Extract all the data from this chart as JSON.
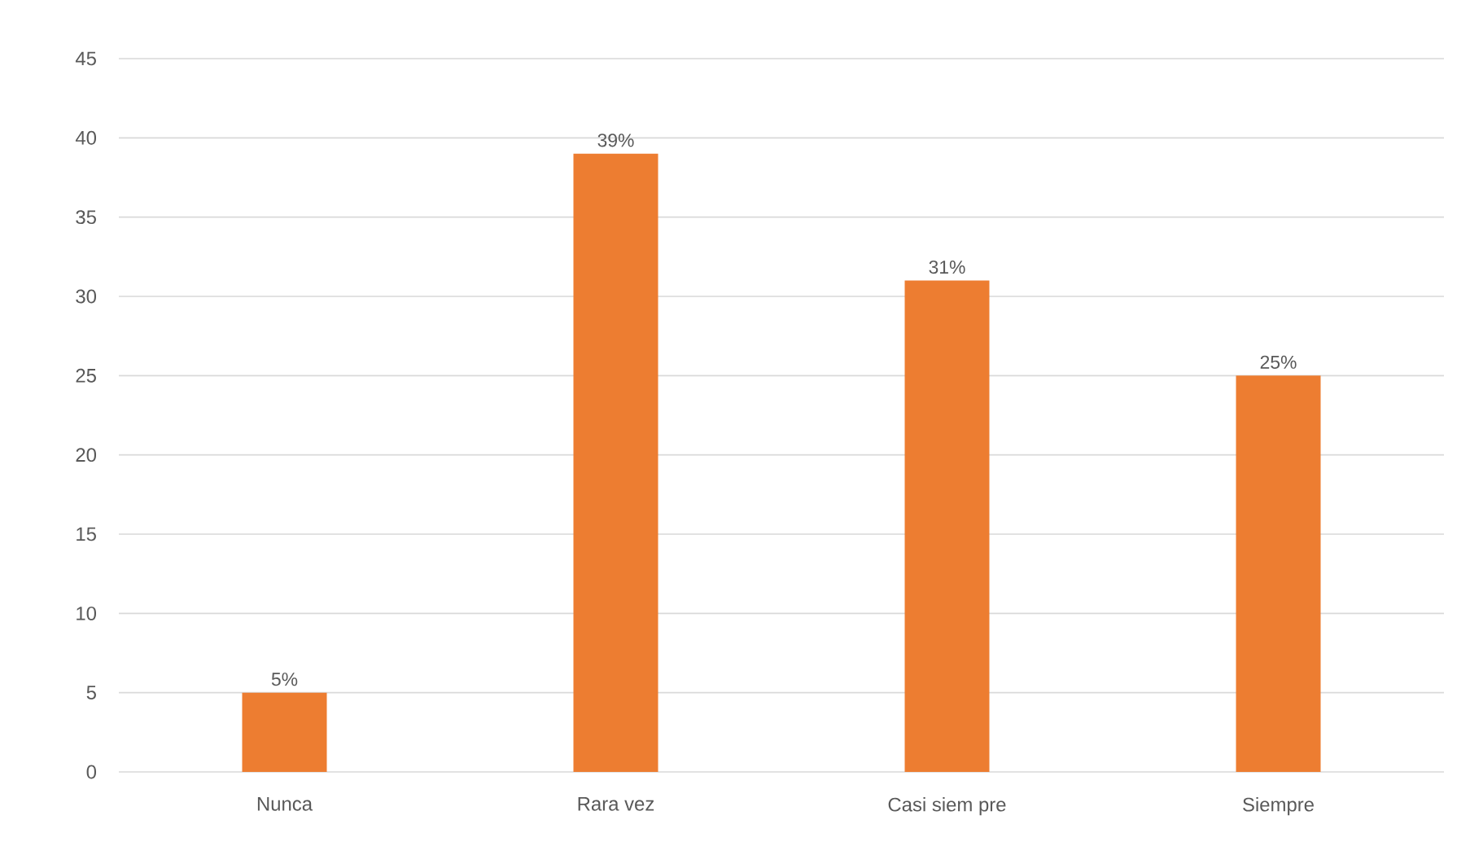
{
  "chart_data": {
    "type": "bar",
    "categories": [
      "Nunca",
      "Rara  vez",
      "Casi  siem pre",
      "Siempre"
    ],
    "values": [
      5,
      39,
      31,
      25
    ],
    "value_labels": [
      "5%",
      "39%",
      "31%",
      "25%"
    ],
    "color": "#ed7d31",
    "ylim": [
      0,
      45
    ],
    "yticks": [
      0,
      5,
      10,
      15,
      20,
      25,
      30,
      35,
      40,
      45
    ],
    "grid": "y"
  }
}
